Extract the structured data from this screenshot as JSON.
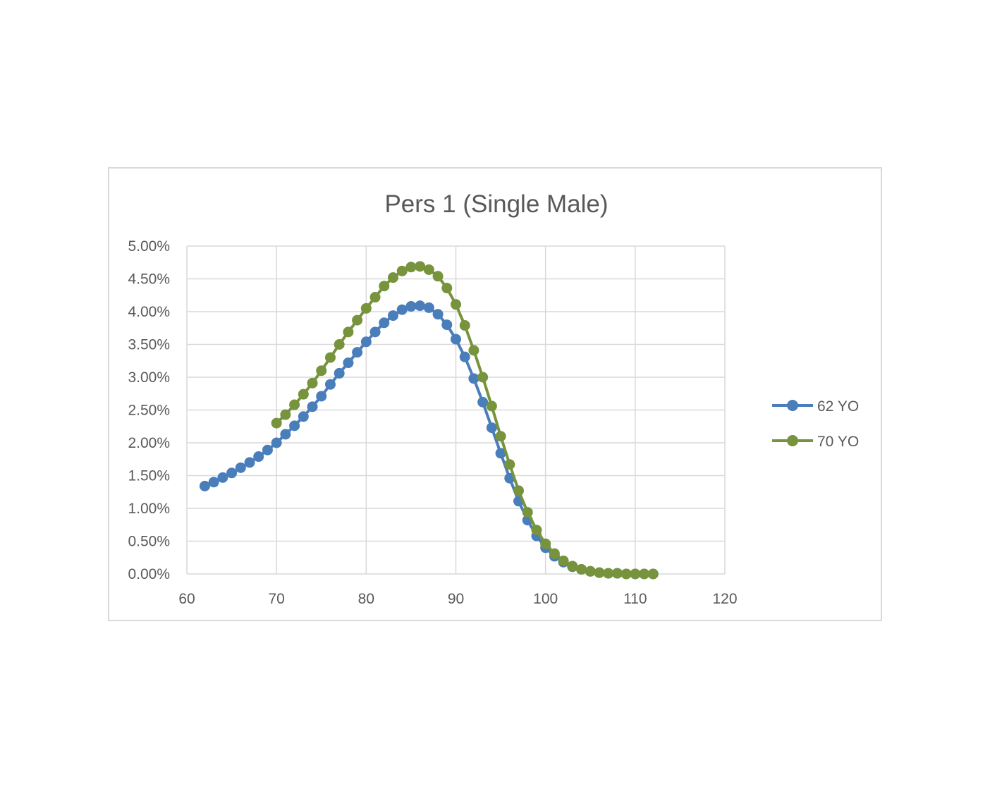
{
  "chart_data": {
    "type": "scatter",
    "title": "Pers 1 (Single Male)",
    "xlabel": "",
    "ylabel": "",
    "xlim": [
      60,
      120
    ],
    "ylim": [
      0,
      0.05
    ],
    "x_ticks": [
      60,
      70,
      80,
      90,
      100,
      110,
      120
    ],
    "x_tick_labels": [
      "60",
      "70",
      "80",
      "90",
      "100",
      "110",
      "120"
    ],
    "y_ticks": [
      0,
      0.005,
      0.01,
      0.015,
      0.02,
      0.025,
      0.03,
      0.035,
      0.04,
      0.045,
      0.05
    ],
    "y_tick_labels": [
      "0.00%",
      "0.50%",
      "1.00%",
      "1.50%",
      "2.00%",
      "2.50%",
      "3.00%",
      "3.50%",
      "4.00%",
      "4.50%",
      "5.00%"
    ],
    "grid": true,
    "legend_position": "right",
    "series": [
      {
        "name": "62 YO",
        "color": "#4a7ebb",
        "x": [
          62,
          63,
          64,
          65,
          66,
          67,
          68,
          69,
          70,
          71,
          72,
          73,
          74,
          75,
          76,
          77,
          78,
          79,
          80,
          81,
          82,
          83,
          84,
          85,
          86,
          87,
          88,
          89,
          90,
          91,
          92,
          93,
          94,
          95,
          96,
          97,
          98,
          99,
          100,
          101,
          102,
          103,
          104,
          105,
          106,
          107,
          108,
          109,
          110,
          111,
          112
        ],
        "y": [
          0.0134,
          0.014,
          0.0147,
          0.0154,
          0.0162,
          0.017,
          0.0179,
          0.0189,
          0.02,
          0.0213,
          0.0226,
          0.024,
          0.0255,
          0.0271,
          0.0289,
          0.0306,
          0.0322,
          0.0338,
          0.0354,
          0.0369,
          0.0383,
          0.0394,
          0.0403,
          0.0408,
          0.0409,
          0.0406,
          0.0396,
          0.038,
          0.0358,
          0.0331,
          0.0298,
          0.0262,
          0.0223,
          0.0184,
          0.0146,
          0.0111,
          0.0082,
          0.0058,
          0.004,
          0.0027,
          0.0018,
          0.0011,
          0.0007,
          0.0004,
          0.0002,
          0.0001,
          0.0001,
          0.0,
          0.0,
          0.0,
          0.0
        ]
      },
      {
        "name": "70 YO",
        "color": "#77933c",
        "x": [
          70,
          71,
          72,
          73,
          74,
          75,
          76,
          77,
          78,
          79,
          80,
          81,
          82,
          83,
          84,
          85,
          86,
          87,
          88,
          89,
          90,
          91,
          92,
          93,
          94,
          95,
          96,
          97,
          98,
          99,
          100,
          101,
          102,
          103,
          104,
          105,
          106,
          107,
          108,
          109,
          110,
          111,
          112
        ],
        "y": [
          0.023,
          0.0243,
          0.0258,
          0.0274,
          0.0291,
          0.031,
          0.033,
          0.035,
          0.0369,
          0.0387,
          0.0405,
          0.0422,
          0.0439,
          0.0452,
          0.0462,
          0.0468,
          0.0469,
          0.0464,
          0.0454,
          0.0436,
          0.0411,
          0.0379,
          0.0341,
          0.03,
          0.0256,
          0.021,
          0.0167,
          0.0127,
          0.0094,
          0.0067,
          0.0046,
          0.0031,
          0.002,
          0.0012,
          0.0007,
          0.0004,
          0.0002,
          0.0001,
          0.0001,
          0.0,
          0.0,
          0.0,
          0.0
        ]
      }
    ]
  }
}
